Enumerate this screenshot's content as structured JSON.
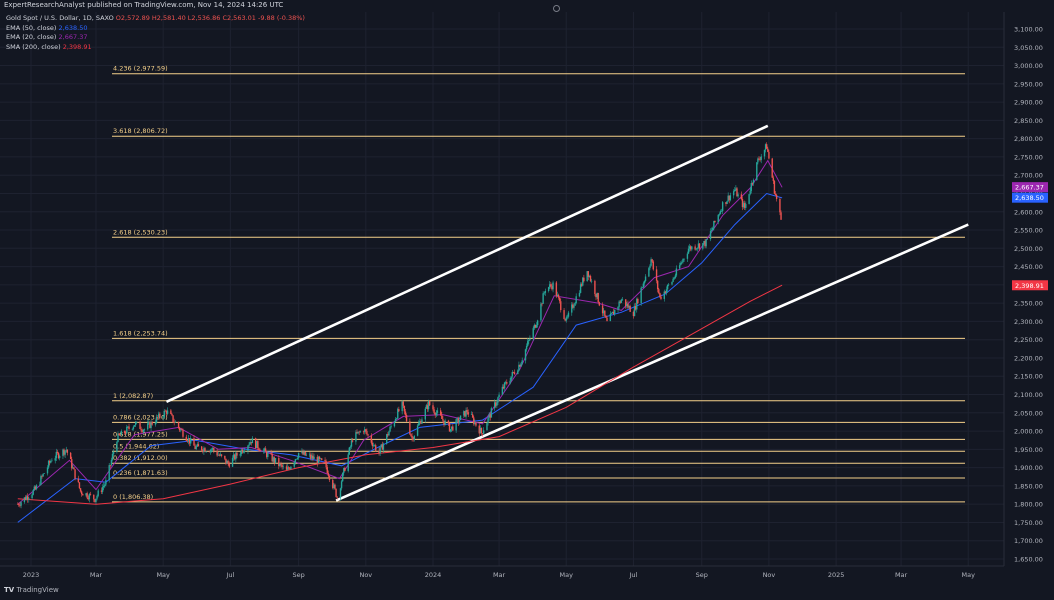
{
  "header": {
    "publisher": "ExpertResearchAnalyst published on TradingView.com, Nov 14, 2024 14:26 UTC"
  },
  "legend": {
    "symbol": "Gold Spot / U.S. Dollar, 1D, SAXO",
    "ohlc": "O2,572.89  H2,581.40  L2,536.86  C2,563.01  -9.88 (-0.38%)",
    "ema50": {
      "label": "EMA (50, close)",
      "value": "2,638.50"
    },
    "ema20": {
      "label": "EMA (20, close)",
      "value": "2,667.37"
    },
    "sma200": {
      "label": "SMA (200, close)",
      "value": "2,398.91"
    }
  },
  "watermark": "TradingView",
  "colors": {
    "background": "#131722",
    "up": "#26a69a",
    "down": "#ef5350",
    "fib": "#f5d08a",
    "ema50": "#2962ff",
    "ema20": "#9c27b0",
    "sma200": "#f23645",
    "channel": "#ffffff"
  },
  "chart_data": {
    "type": "line",
    "title": "",
    "y_ticks": [
      "3,100.00",
      "3,050.00",
      "3,000.00",
      "2,950.00",
      "2,900.00",
      "2,850.00",
      "2,800.00",
      "2,750.00",
      "2,700.00",
      "2,650.00",
      "2,600.00",
      "2,550.00",
      "2,500.00",
      "2,450.00",
      "2,400.00",
      "2,350.00",
      "2,300.00",
      "2,250.00",
      "2,200.00",
      "2,150.00",
      "2,100.00",
      "2,050.00",
      "2,000.00",
      "1,950.00",
      "1,900.00",
      "1,850.00",
      "1,800.00",
      "1,750.00",
      "1,700.00",
      "1,650.00"
    ],
    "ylim": [
      1630,
      3115
    ],
    "x_ticks": [
      "2023",
      "Mar",
      "May",
      "Jul",
      "Sep",
      "Nov",
      "2024",
      "Mar",
      "May",
      "Jul",
      "Sep",
      "Nov",
      "2025",
      "Mar",
      "May"
    ],
    "price_labels": [
      {
        "value": 2667.37,
        "text": "2,667.37",
        "color": "#9c27b0"
      },
      {
        "value": 2638.5,
        "text": "2,638.50",
        "color": "#2962ff"
      },
      {
        "value": 2398.91,
        "text": "2,398.91",
        "color": "#f23645"
      }
    ],
    "fib_levels": [
      {
        "label": "4.236 (2,977.59)",
        "value": 2977.59
      },
      {
        "label": "3.618 (2,806.72)",
        "value": 2806.72
      },
      {
        "label": "2.618 (2,530.23)",
        "value": 2530.23
      },
      {
        "label": "1.618 (2,253.74)",
        "value": 2253.74
      },
      {
        "label": "1 (2,082.87)",
        "value": 2082.87
      },
      {
        "label": "0.786 (2,023.70)",
        "value": 2023.7
      },
      {
        "label": "0.618 (1,977.25)",
        "value": 1977.25
      },
      {
        "label": "0.5 (1,944.62)",
        "value": 1944.62
      },
      {
        "label": "0.382 (1,912.00)",
        "value": 1912.0
      },
      {
        "label": "0.236 (1,871.63)",
        "value": 1871.63
      },
      {
        "label": "0 (1,806.38)",
        "value": 1806.38
      }
    ],
    "channel": {
      "upper": [
        {
          "date": "2023-05-04",
          "y": 2080
        },
        {
          "date": "2024-10-31",
          "y": 2835
        }
      ],
      "lower": [
        {
          "date": "2023-10-05",
          "y": 1810
        },
        {
          "date": "2025-05-01",
          "y": 2565
        }
      ]
    },
    "series": [
      {
        "name": "Gold Spot / U.S. Dollar",
        "kind": "price",
        "points": [
          [
            "2022-12-20",
            1800
          ],
          [
            "2023-01-05",
            1840
          ],
          [
            "2023-01-20",
            1925
          ],
          [
            "2023-02-02",
            1950
          ],
          [
            "2023-02-15",
            1835
          ],
          [
            "2023-02-28",
            1815
          ],
          [
            "2023-03-10",
            1860
          ],
          [
            "2023-03-20",
            1980
          ],
          [
            "2023-04-05",
            2020
          ],
          [
            "2023-04-14",
            2005
          ],
          [
            "2023-05-04",
            2055
          ],
          [
            "2023-05-15",
            2010
          ],
          [
            "2023-05-30",
            1955
          ],
          [
            "2023-06-15",
            1950
          ],
          [
            "2023-06-29",
            1910
          ],
          [
            "2023-07-20",
            1975
          ],
          [
            "2023-08-02",
            1940
          ],
          [
            "2023-08-21",
            1890
          ],
          [
            "2023-09-01",
            1940
          ],
          [
            "2023-09-15",
            1925
          ],
          [
            "2023-09-25",
            1910
          ],
          [
            "2023-10-06",
            1820
          ],
          [
            "2023-10-20",
            1980
          ],
          [
            "2023-10-30",
            2005
          ],
          [
            "2023-11-13",
            1940
          ],
          [
            "2023-11-29",
            2045
          ],
          [
            "2023-12-04",
            2070
          ],
          [
            "2023-12-13",
            1980
          ],
          [
            "2023-12-28",
            2075
          ],
          [
            "2024-01-17",
            2005
          ],
          [
            "2024-02-01",
            2055
          ],
          [
            "2024-02-14",
            1995
          ],
          [
            "2024-03-04",
            2115
          ],
          [
            "2024-03-20",
            2185
          ],
          [
            "2024-04-04",
            2300
          ],
          [
            "2024-04-12",
            2390
          ],
          [
            "2024-04-19",
            2400
          ],
          [
            "2024-05-01",
            2300
          ],
          [
            "2024-05-20",
            2440
          ],
          [
            "2024-06-07",
            2295
          ],
          [
            "2024-06-20",
            2360
          ],
          [
            "2024-07-01",
            2325
          ],
          [
            "2024-07-17",
            2470
          ],
          [
            "2024-07-25",
            2365
          ],
          [
            "2024-08-05",
            2410
          ],
          [
            "2024-08-20",
            2500
          ],
          [
            "2024-09-05",
            2515
          ],
          [
            "2024-09-20",
            2620
          ],
          [
            "2024-10-01",
            2660
          ],
          [
            "2024-10-10",
            2610
          ],
          [
            "2024-10-22",
            2740
          ],
          [
            "2024-10-30",
            2780
          ],
          [
            "2024-11-06",
            2660
          ],
          [
            "2024-11-13",
            2565
          ]
        ]
      },
      {
        "name": "EMA (50, close)",
        "kind": "ema50",
        "points": [
          [
            "2022-12-20",
            1750
          ],
          [
            "2023-02-10",
            1870
          ],
          [
            "2023-03-10",
            1860
          ],
          [
            "2023-04-20",
            1960
          ],
          [
            "2023-05-30",
            1975
          ],
          [
            "2023-07-15",
            1950
          ],
          [
            "2023-08-25",
            1935
          ],
          [
            "2023-10-10",
            1905
          ],
          [
            "2023-11-15",
            1960
          ],
          [
            "2023-12-20",
            2010
          ],
          [
            "2024-02-15",
            2030
          ],
          [
            "2024-04-01",
            2120
          ],
          [
            "2024-05-10",
            2290
          ],
          [
            "2024-06-20",
            2325
          ],
          [
            "2024-07-30",
            2375
          ],
          [
            "2024-09-01",
            2460
          ],
          [
            "2024-10-01",
            2565
          ],
          [
            "2024-10-30",
            2650
          ],
          [
            "2024-11-13",
            2638
          ]
        ]
      },
      {
        "name": "EMA (20, close)",
        "kind": "ema20",
        "points": [
          [
            "2022-12-20",
            1800
          ],
          [
            "2023-02-05",
            1920
          ],
          [
            "2023-03-01",
            1840
          ],
          [
            "2023-04-05",
            1990
          ],
          [
            "2023-05-15",
            2010
          ],
          [
            "2023-06-20",
            1950
          ],
          [
            "2023-07-20",
            1955
          ],
          [
            "2023-08-25",
            1920
          ],
          [
            "2023-10-08",
            1870
          ],
          [
            "2023-10-30",
            1975
          ],
          [
            "2023-12-05",
            2040
          ],
          [
            "2024-01-10",
            2045
          ],
          [
            "2024-02-15",
            2020
          ],
          [
            "2024-03-20",
            2170
          ],
          [
            "2024-04-20",
            2370
          ],
          [
            "2024-05-30",
            2350
          ],
          [
            "2024-06-20",
            2330
          ],
          [
            "2024-07-20",
            2420
          ],
          [
            "2024-08-20",
            2450
          ],
          [
            "2024-09-20",
            2590
          ],
          [
            "2024-10-15",
            2665
          ],
          [
            "2024-10-31",
            2740
          ],
          [
            "2024-11-13",
            2667
          ]
        ]
      },
      {
        "name": "SMA (200, close)",
        "kind": "sma200",
        "points": [
          [
            "2022-12-20",
            1815
          ],
          [
            "2023-03-01",
            1800
          ],
          [
            "2023-05-01",
            1815
          ],
          [
            "2023-07-01",
            1855
          ],
          [
            "2023-09-01",
            1900
          ],
          [
            "2023-11-01",
            1935
          ],
          [
            "2024-01-01",
            1955
          ],
          [
            "2024-03-01",
            1985
          ],
          [
            "2024-05-01",
            2065
          ],
          [
            "2024-07-01",
            2175
          ],
          [
            "2024-09-01",
            2280
          ],
          [
            "2024-10-15",
            2355
          ],
          [
            "2024-11-13",
            2399
          ]
        ]
      }
    ]
  }
}
